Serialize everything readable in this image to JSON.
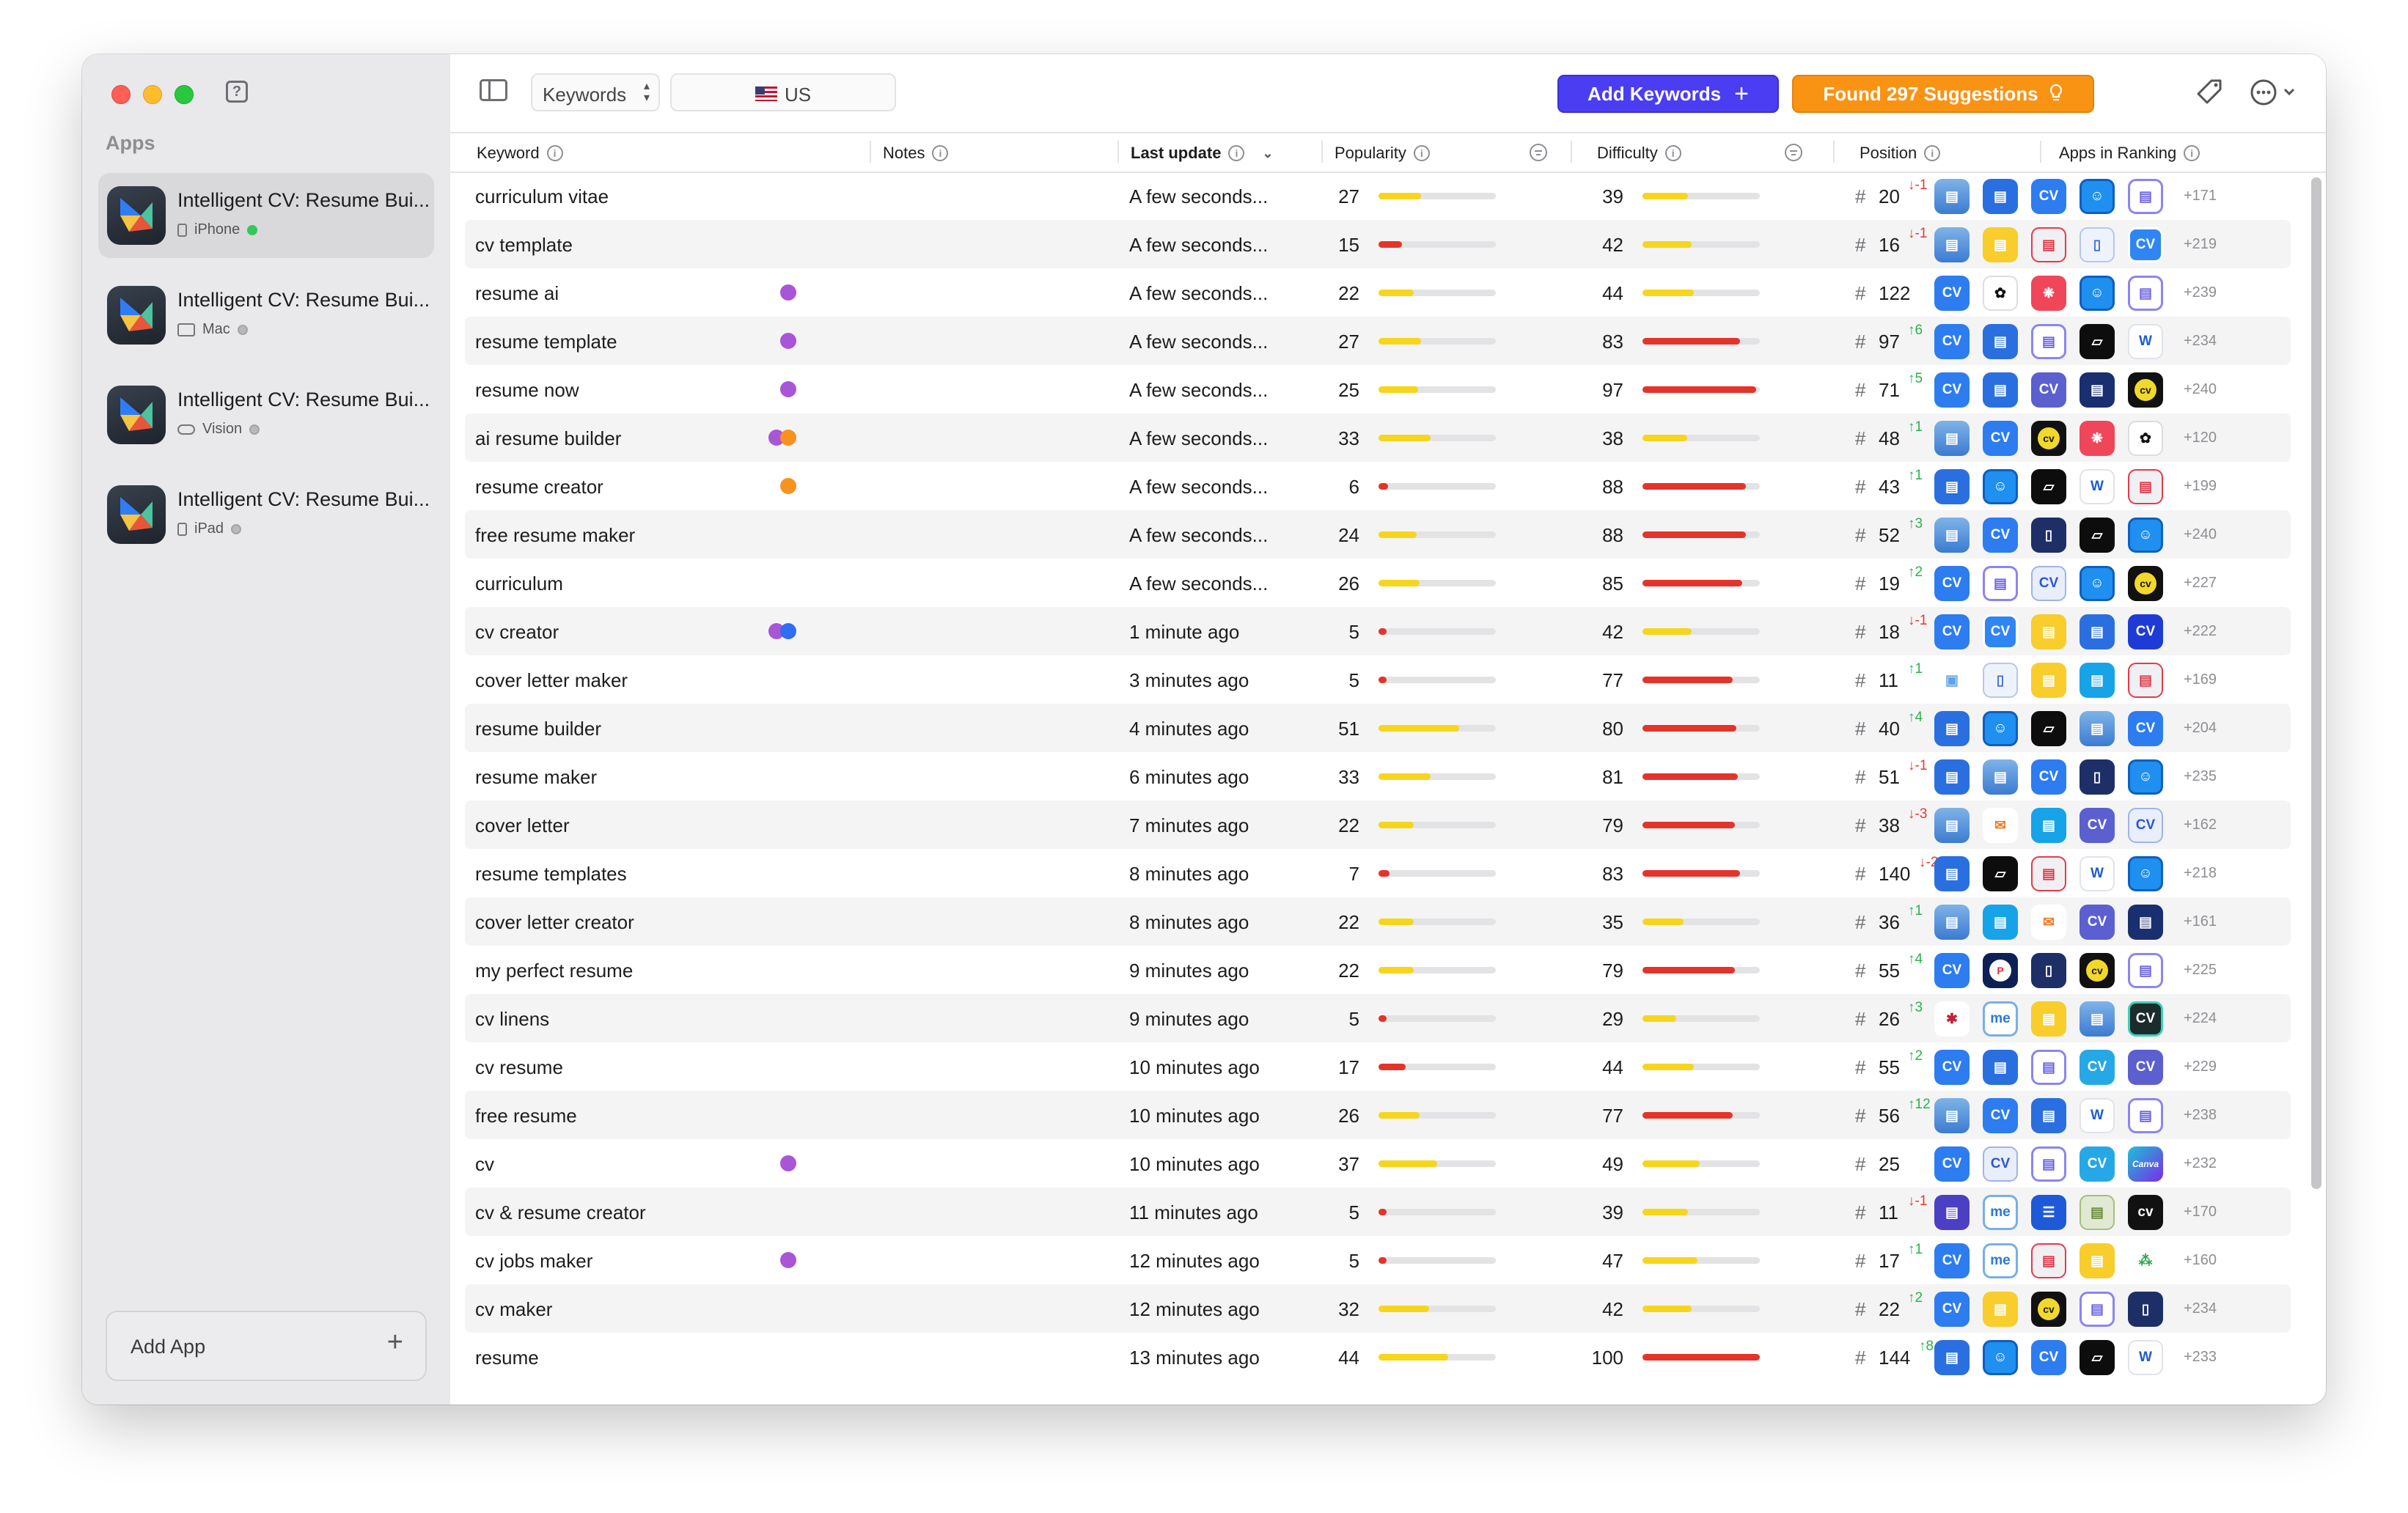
{
  "sidebar": {
    "heading": "Apps",
    "apps": [
      {
        "name": "Intelligent CV: Resume Bui...",
        "device": "iPhone",
        "status": "active",
        "selected": true
      },
      {
        "name": "Intelligent CV: Resume Bui...",
        "device": "Mac",
        "status": "paused",
        "selected": false
      },
      {
        "name": "Intelligent CV: Resume Bui...",
        "device": "Vision",
        "status": "paused",
        "selected": false
      },
      {
        "name": "Intelligent CV: Resume Bui...",
        "device": "iPad",
        "status": "paused",
        "selected": false
      }
    ],
    "add_app_label": "Add App"
  },
  "toolbar": {
    "keywords_select": "Keywords",
    "country": "US",
    "add_keywords_label": "Add Keywords",
    "suggestions_label": "Found 297 Suggestions"
  },
  "table": {
    "columns": {
      "keyword": "Keyword",
      "notes": "Notes",
      "last_update": "Last update",
      "popularity": "Popularity",
      "difficulty": "Difficulty",
      "position": "Position",
      "apps_in_ranking": "Apps in Ranking"
    },
    "colors": {
      "low": "#e4342a",
      "mid": "#f7d51d",
      "high": "#e4342a",
      "note_purple": "#a855d8",
      "note_orange": "#f7921e",
      "note_blue": "#2f6df5"
    },
    "rows": [
      {
        "keyword": "curriculum vitae",
        "notes": [],
        "last_update": "A few seconds...",
        "popularity": "27",
        "difficulty": "39",
        "position": "20",
        "delta": "↓-1",
        "delta_dir": "down",
        "icons": [
          "notepad",
          "doc-blue",
          "cv-blue",
          "profile-blue",
          "doc-purple"
        ],
        "extra": "+171"
      },
      {
        "keyword": "cv template",
        "notes": [],
        "last_update": "A few seconds...",
        "popularity": "15",
        "difficulty": "42",
        "position": "16",
        "delta": "↓-1",
        "delta_dir": "down",
        "icons": [
          "notepad",
          "doc-yellow",
          "doc-red",
          "doc-outline",
          "cv-outline"
        ],
        "extra": "+219"
      },
      {
        "keyword": "resume ai",
        "notes": [
          "note_purple"
        ],
        "last_update": "A few seconds...",
        "popularity": "22",
        "difficulty": "44",
        "position": "122",
        "delta": "",
        "delta_dir": "",
        "icons": [
          "cv-blue",
          "openai",
          "ai-red",
          "profile-blue",
          "doc-purple"
        ],
        "extra": "+239"
      },
      {
        "keyword": "resume template",
        "notes": [
          "note_purple"
        ],
        "last_update": "A few seconds...",
        "popularity": "27",
        "difficulty": "83",
        "position": "97",
        "delta": "↑6",
        "delta_dir": "up",
        "icons": [
          "cv-blue",
          "doc-blue",
          "doc-purple",
          "paper-black",
          "word"
        ],
        "extra": "+234"
      },
      {
        "keyword": "resume now",
        "notes": [
          "note_purple"
        ],
        "last_update": "A few seconds...",
        "popularity": "25",
        "difficulty": "97",
        "position": "71",
        "delta": "↑5",
        "delta_dir": "up",
        "icons": [
          "cv-blue",
          "doc-blue",
          "cv-indigo",
          "doc-dark",
          "cv-yellow"
        ],
        "extra": "+240"
      },
      {
        "keyword": "ai resume builder",
        "notes": [
          "note_purple",
          "note_orange"
        ],
        "last_update": "A few seconds...",
        "popularity": "33",
        "difficulty": "38",
        "position": "48",
        "delta": "↑1",
        "delta_dir": "up",
        "icons": [
          "notepad",
          "cv-blue",
          "cv-yellow",
          "ai-red",
          "openai"
        ],
        "extra": "+120"
      },
      {
        "keyword": "resume creator",
        "notes": [
          "note_orange"
        ],
        "last_update": "A few seconds...",
        "popularity": "6",
        "difficulty": "88",
        "position": "43",
        "delta": "↑1",
        "delta_dir": "up",
        "icons": [
          "doc-blue",
          "profile-blue",
          "paper-black",
          "word",
          "doc-red"
        ],
        "extra": "+199"
      },
      {
        "keyword": "free resume maker",
        "notes": [],
        "last_update": "A few seconds...",
        "popularity": "24",
        "difficulty": "88",
        "position": "52",
        "delta": "↑3",
        "delta_dir": "up",
        "icons": [
          "notepad",
          "cv-blue",
          "doc-white",
          "paper-black",
          "profile-blue"
        ],
        "extra": "+240"
      },
      {
        "keyword": "curriculum",
        "notes": [],
        "last_update": "A few seconds...",
        "popularity": "26",
        "difficulty": "85",
        "position": "19",
        "delta": "↑2",
        "delta_dir": "up",
        "icons": [
          "cv-blue",
          "doc-purple",
          "cv-multi",
          "profile-blue",
          "cv-yellow"
        ],
        "extra": "+227"
      },
      {
        "keyword": "cv creator",
        "notes": [
          "note_purple",
          "note_blue"
        ],
        "last_update": "1 minute ago",
        "popularity": "5",
        "difficulty": "42",
        "position": "18",
        "delta": "↓-1",
        "delta_dir": "down",
        "icons": [
          "cv-blue",
          "cv-outline",
          "doc-yellow",
          "doc-blue",
          "cv-navy"
        ],
        "extra": "+222"
      },
      {
        "keyword": "cover letter maker",
        "notes": [],
        "last_update": "3 minutes ago",
        "popularity": "5",
        "difficulty": "77",
        "position": "11",
        "delta": "↑1",
        "delta_dir": "up",
        "icons": [
          "clip-light",
          "doc-outline",
          "doc-yellow",
          "doc-cyan",
          "doc-red"
        ],
        "extra": "+169"
      },
      {
        "keyword": "resume builder",
        "notes": [],
        "last_update": "4 minutes ago",
        "popularity": "51",
        "difficulty": "80",
        "position": "40",
        "delta": "↑4",
        "delta_dir": "up",
        "icons": [
          "doc-blue",
          "profile-blue",
          "paper-black",
          "notepad",
          "cv-blue"
        ],
        "extra": "+204"
      },
      {
        "keyword": "resume maker",
        "notes": [],
        "last_update": "6 minutes ago",
        "popularity": "33",
        "difficulty": "81",
        "position": "51",
        "delta": "↓-1",
        "delta_dir": "down",
        "icons": [
          "doc-blue",
          "notepad",
          "cv-blue",
          "doc-white",
          "profile-blue"
        ],
        "extra": "+235"
      },
      {
        "keyword": "cover letter",
        "notes": [],
        "last_update": "7 minutes ago",
        "popularity": "22",
        "difficulty": "79",
        "position": "38",
        "delta": "↓-3",
        "delta_dir": "down",
        "icons": [
          "notepad",
          "mail-orange",
          "doc-cyan",
          "cv-indigo",
          "cv-multi"
        ],
        "extra": "+162"
      },
      {
        "keyword": "resume templates",
        "notes": [],
        "last_update": "8 minutes ago",
        "popularity": "7",
        "difficulty": "83",
        "position": "140",
        "delta": "↓-2",
        "delta_dir": "down",
        "icons": [
          "doc-blue",
          "paper-black",
          "doc-red",
          "word",
          "profile-blue"
        ],
        "extra": "+218"
      },
      {
        "keyword": "cover letter creator",
        "notes": [],
        "last_update": "8 minutes ago",
        "popularity": "22",
        "difficulty": "35",
        "position": "36",
        "delta": "↑1",
        "delta_dir": "up",
        "icons": [
          "notepad",
          "doc-cyan",
          "mail-orange",
          "cv-indigo",
          "doc-dark"
        ],
        "extra": "+161"
      },
      {
        "keyword": "my perfect resume",
        "notes": [],
        "last_update": "9 minutes ago",
        "popularity": "22",
        "difficulty": "79",
        "position": "55",
        "delta": "↑4",
        "delta_dir": "up",
        "icons": [
          "cv-blue",
          "p-red",
          "doc-white",
          "cv-yellow",
          "doc-purple"
        ],
        "extra": "+225"
      },
      {
        "keyword": "cv linens",
        "notes": [],
        "last_update": "9 minutes ago",
        "popularity": "5",
        "difficulty": "29",
        "position": "26",
        "delta": "↑3",
        "delta_dir": "up",
        "icons": [
          "flower-red",
          "me-blue",
          "doc-yellow",
          "notepad",
          "cv-black"
        ],
        "extra": "+224"
      },
      {
        "keyword": "cv resume",
        "notes": [],
        "last_update": "10 minutes ago",
        "popularity": "17",
        "difficulty": "44",
        "position": "55",
        "delta": "↑2",
        "delta_dir": "up",
        "icons": [
          "cv-blue",
          "doc-blue",
          "doc-purple",
          "cv-cyan",
          "cv-indigo"
        ],
        "extra": "+229"
      },
      {
        "keyword": "free resume",
        "notes": [],
        "last_update": "10 minutes ago",
        "popularity": "26",
        "difficulty": "77",
        "position": "56",
        "delta": "↑12",
        "delta_dir": "up",
        "icons": [
          "notepad",
          "cv-blue",
          "doc-blue",
          "word",
          "doc-purple"
        ],
        "extra": "+238"
      },
      {
        "keyword": "cv",
        "notes": [
          "note_purple"
        ],
        "last_update": "10 minutes ago",
        "popularity": "37",
        "difficulty": "49",
        "position": "25",
        "delta": "",
        "delta_dir": "",
        "icons": [
          "cv-blue",
          "cv-multi",
          "doc-purple",
          "cv-cyan",
          "canva"
        ],
        "extra": "+232"
      },
      {
        "keyword": "cv & resume creator",
        "notes": [],
        "last_update": "11 minutes ago",
        "popularity": "5",
        "difficulty": "39",
        "position": "11",
        "delta": "↓-1",
        "delta_dir": "down",
        "icons": [
          "doc-violet",
          "me-blue",
          "doc-lines",
          "doc-green",
          "cv-black2"
        ],
        "extra": "+170"
      },
      {
        "keyword": "cv jobs maker",
        "notes": [
          "note_purple"
        ],
        "last_update": "12 minutes ago",
        "popularity": "5",
        "difficulty": "47",
        "position": "17",
        "delta": "↑1",
        "delta_dir": "up",
        "icons": [
          "cv-blue",
          "me-blue",
          "doc-red",
          "doc-yellow",
          "g-green"
        ],
        "extra": "+160"
      },
      {
        "keyword": "cv maker",
        "notes": [],
        "last_update": "12 minutes ago",
        "popularity": "32",
        "difficulty": "42",
        "position": "22",
        "delta": "↑2",
        "delta_dir": "up",
        "icons": [
          "cv-blue",
          "doc-yellow",
          "cv-yellow",
          "doc-purple",
          "doc-white"
        ],
        "extra": "+234"
      },
      {
        "keyword": "resume",
        "notes": [],
        "last_update": "13 minutes ago",
        "popularity": "44",
        "difficulty": "100",
        "position": "144",
        "delta": "↑8",
        "delta_dir": "up",
        "icons": [
          "doc-blue",
          "profile-blue",
          "cv-blue",
          "paper-black",
          "word"
        ],
        "extra": "+233"
      }
    ]
  }
}
